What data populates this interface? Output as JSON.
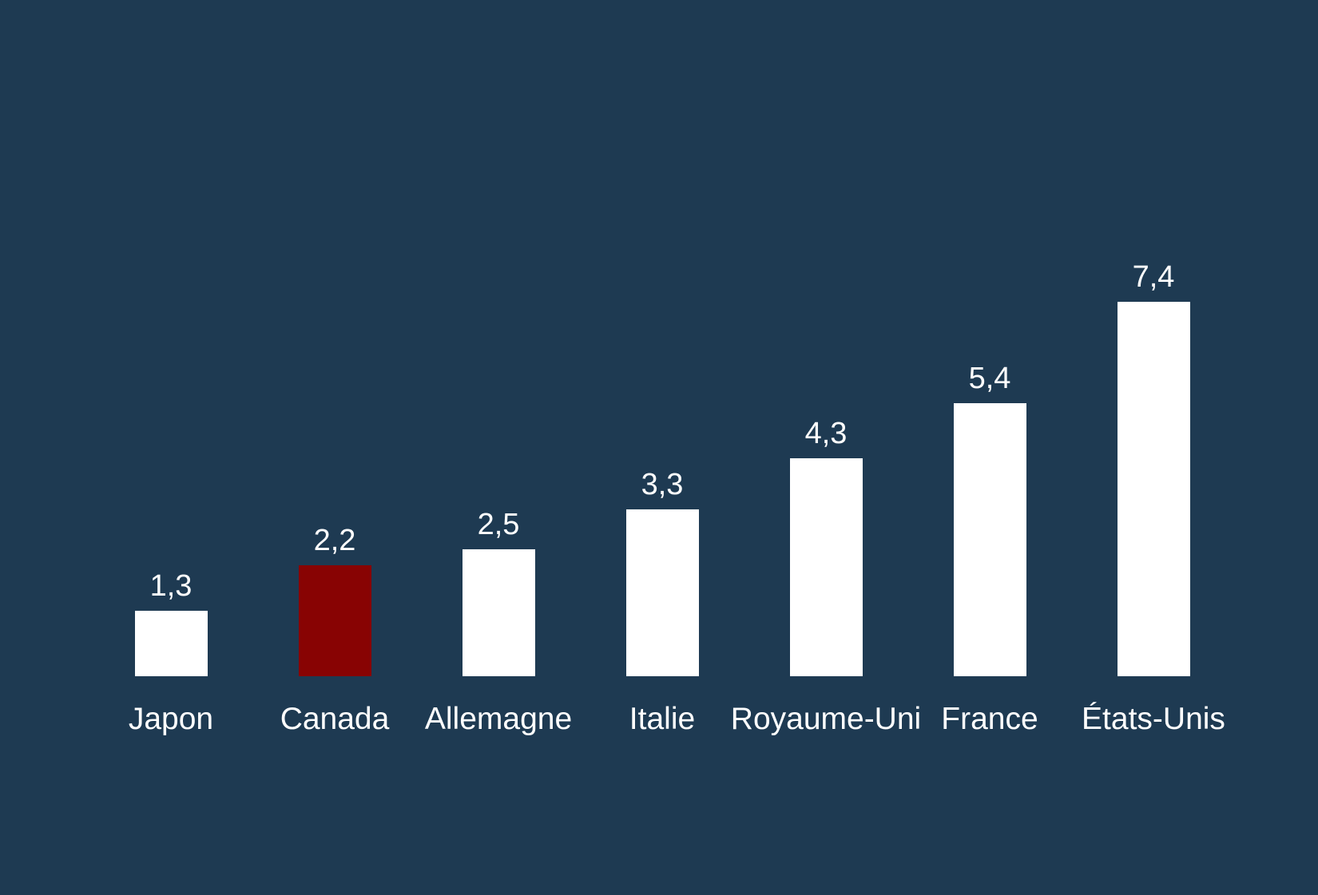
{
  "chart_data": {
    "type": "bar",
    "categories": [
      "Japon",
      "Canada",
      "Allemagne",
      "Italie",
      "Royaume-Uni",
      "France",
      "États-Unis"
    ],
    "values": [
      1.3,
      2.2,
      2.5,
      3.3,
      4.3,
      5.4,
      7.4
    ],
    "value_labels": [
      "1,3",
      "2,2",
      "2,5",
      "3,3",
      "4,3",
      "5,4",
      "7,4"
    ],
    "highlighted_category": "Canada",
    "title": "",
    "xlabel": "",
    "ylabel": "",
    "ylim": [
      0,
      8
    ],
    "grid": false,
    "legend": "none",
    "axes_visible": false,
    "colors": {
      "background": "#1e3a52",
      "bar_default": "#ffffff",
      "bar_highlight": "#880303",
      "text": "#ffffff"
    }
  }
}
